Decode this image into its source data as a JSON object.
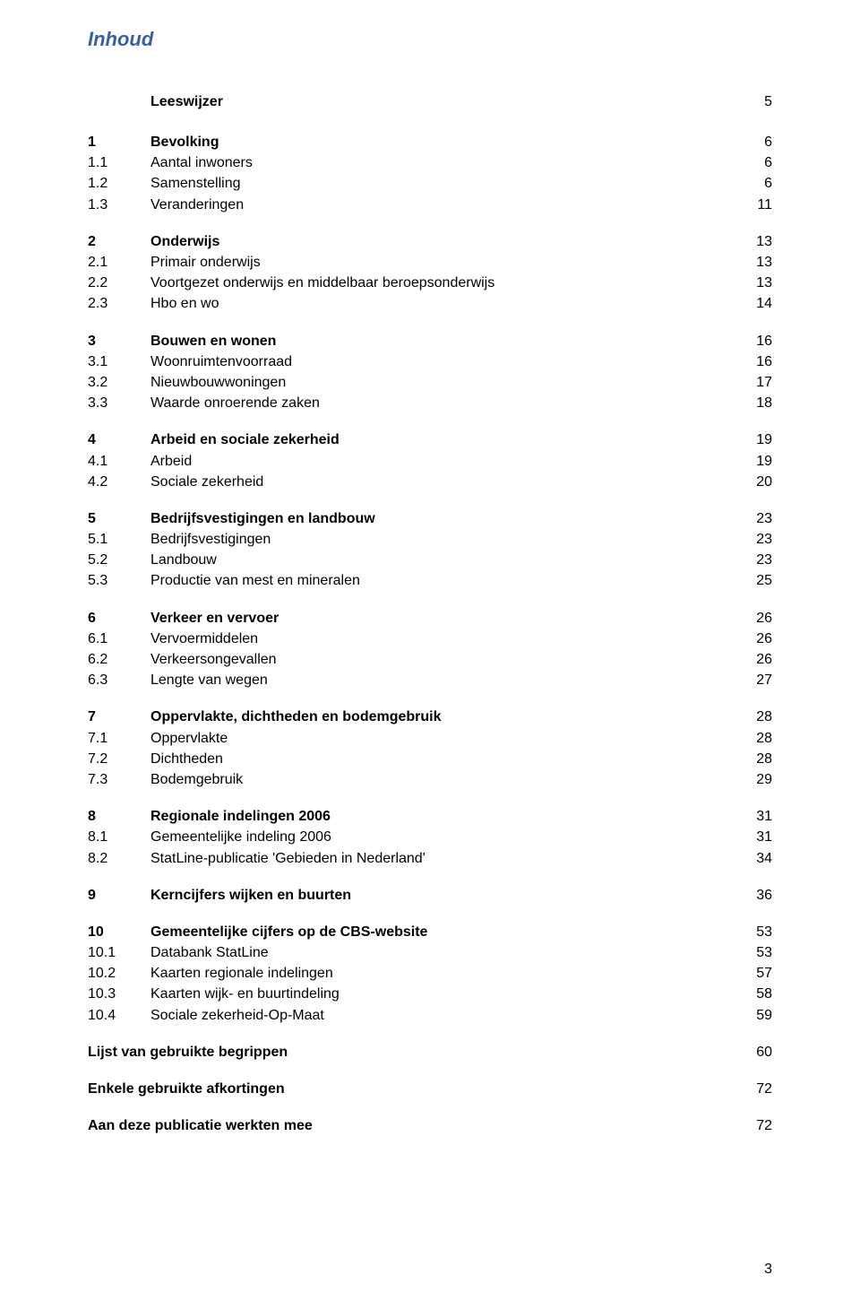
{
  "title": "Inhoud",
  "leeswijzer": {
    "label": "Leeswijzer",
    "page": "5"
  },
  "sections": [
    {
      "num": "1",
      "label": "Bevolking",
      "page": "6",
      "items": [
        {
          "num": "1.1",
          "label": "Aantal inwoners",
          "page": "6"
        },
        {
          "num": "1.2",
          "label": "Samenstelling",
          "page": "6"
        },
        {
          "num": "1.3",
          "label": "Veranderingen",
          "page": "11"
        }
      ]
    },
    {
      "num": "2",
      "label": "Onderwijs",
      "page": "13",
      "items": [
        {
          "num": "2.1",
          "label": "Primair onderwijs",
          "page": "13"
        },
        {
          "num": "2.2",
          "label": "Voortgezet onderwijs en middelbaar beroepsonderwijs",
          "page": "13"
        },
        {
          "num": "2.3",
          "label": "Hbo en wo",
          "page": "14"
        }
      ]
    },
    {
      "num": "3",
      "label": "Bouwen en wonen",
      "page": "16",
      "items": [
        {
          "num": "3.1",
          "label": "Woonruimtenvoorraad",
          "page": "16"
        },
        {
          "num": "3.2",
          "label": "Nieuwbouwwoningen",
          "page": "17"
        },
        {
          "num": "3.3",
          "label": "Waarde onroerende zaken",
          "page": "18"
        }
      ]
    },
    {
      "num": "4",
      "label": "Arbeid en sociale zekerheid",
      "page": "19",
      "items": [
        {
          "num": "4.1",
          "label": "Arbeid",
          "page": "19"
        },
        {
          "num": "4.2",
          "label": "Sociale zekerheid",
          "page": "20"
        }
      ]
    },
    {
      "num": "5",
      "label": "Bedrijfsvestigingen en landbouw",
      "page": "23",
      "items": [
        {
          "num": "5.1",
          "label": "Bedrijfsvestigingen",
          "page": "23"
        },
        {
          "num": "5.2",
          "label": "Landbouw",
          "page": "23"
        },
        {
          "num": "5.3",
          "label": "Productie van mest en mineralen",
          "page": "25"
        }
      ]
    },
    {
      "num": "6",
      "label": "Verkeer en vervoer",
      "page": "26",
      "items": [
        {
          "num": "6.1",
          "label": "Vervoermiddelen",
          "page": "26"
        },
        {
          "num": "6.2",
          "label": "Verkeersongevallen",
          "page": "26"
        },
        {
          "num": "6.3",
          "label": "Lengte van wegen",
          "page": "27"
        }
      ]
    },
    {
      "num": "7",
      "label": "Oppervlakte, dichtheden en bodemgebruik",
      "page": "28",
      "items": [
        {
          "num": "7.1",
          "label": "Oppervlakte",
          "page": "28"
        },
        {
          "num": "7.2",
          "label": "Dichtheden",
          "page": "28"
        },
        {
          "num": "7.3",
          "label": "Bodemgebruik",
          "page": "29"
        }
      ]
    },
    {
      "num": "8",
      "label": "Regionale indelingen 2006",
      "page": "31",
      "items": [
        {
          "num": "8.1",
          "label": "Gemeentelijke indeling 2006",
          "page": "31"
        },
        {
          "num": "8.2",
          "label": "StatLine-publicatie 'Gebieden in Nederland'",
          "page": "34"
        }
      ]
    },
    {
      "num": "9",
      "label": "Kerncijfers wijken en buurten",
      "page": "36",
      "items": []
    },
    {
      "num": "10",
      "label": "Gemeentelijke cijfers op de CBS-website",
      "page": "53",
      "items": [
        {
          "num": "10.1",
          "label": "Databank StatLine",
          "page": "53"
        },
        {
          "num": "10.2",
          "label": "Kaarten regionale indelingen",
          "page": "57"
        },
        {
          "num": "10.3",
          "label": "Kaarten wijk- en buurtindeling",
          "page": "58"
        },
        {
          "num": "10.4",
          "label": "Sociale zekerheid-Op-Maat",
          "page": "59"
        }
      ]
    }
  ],
  "tail": [
    {
      "label": "Lijst van gebruikte begrippen",
      "page": "60"
    },
    {
      "label": "Enkele gebruikte afkortingen",
      "page": "72"
    },
    {
      "label": "Aan deze publicatie werkten mee",
      "page": "72"
    }
  ],
  "footer_page": "3",
  "colors": {
    "title": "#3b5ea9",
    "text": "#000000",
    "background": "#ffffff"
  }
}
